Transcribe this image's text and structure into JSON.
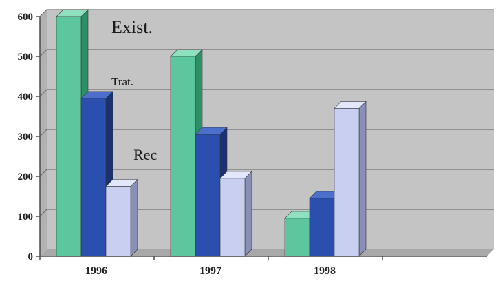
{
  "chart_data": {
    "type": "bar",
    "style": "3d-clustered-column",
    "categories": [
      "1996",
      "1997",
      "1998"
    ],
    "series": [
      {
        "name": "Exist.",
        "values": [
          600,
          500,
          95
        ],
        "color": "#5cc79e",
        "side": "#2e8f66",
        "top": "#8fe0bf"
      },
      {
        "name": "Trat.",
        "values": [
          395,
          305,
          145
        ],
        "color": "#2a4fae",
        "side": "#1a3273",
        "top": "#4c6fcb"
      },
      {
        "name": "Rec",
        "values": [
          175,
          195,
          370
        ],
        "color": "#c9cff0",
        "side": "#8990b8",
        "top": "#e3e7fb"
      }
    ],
    "y_ticks": [
      "0",
      "100",
      "200",
      "300",
      "400",
      "500",
      "600"
    ],
    "ylim": [
      0,
      600
    ],
    "grid": true,
    "colors": {
      "wall": "#c4c4c4",
      "floor": "#a8a8a8",
      "grid": "#707070",
      "axis": "#4a4a4a"
    }
  }
}
